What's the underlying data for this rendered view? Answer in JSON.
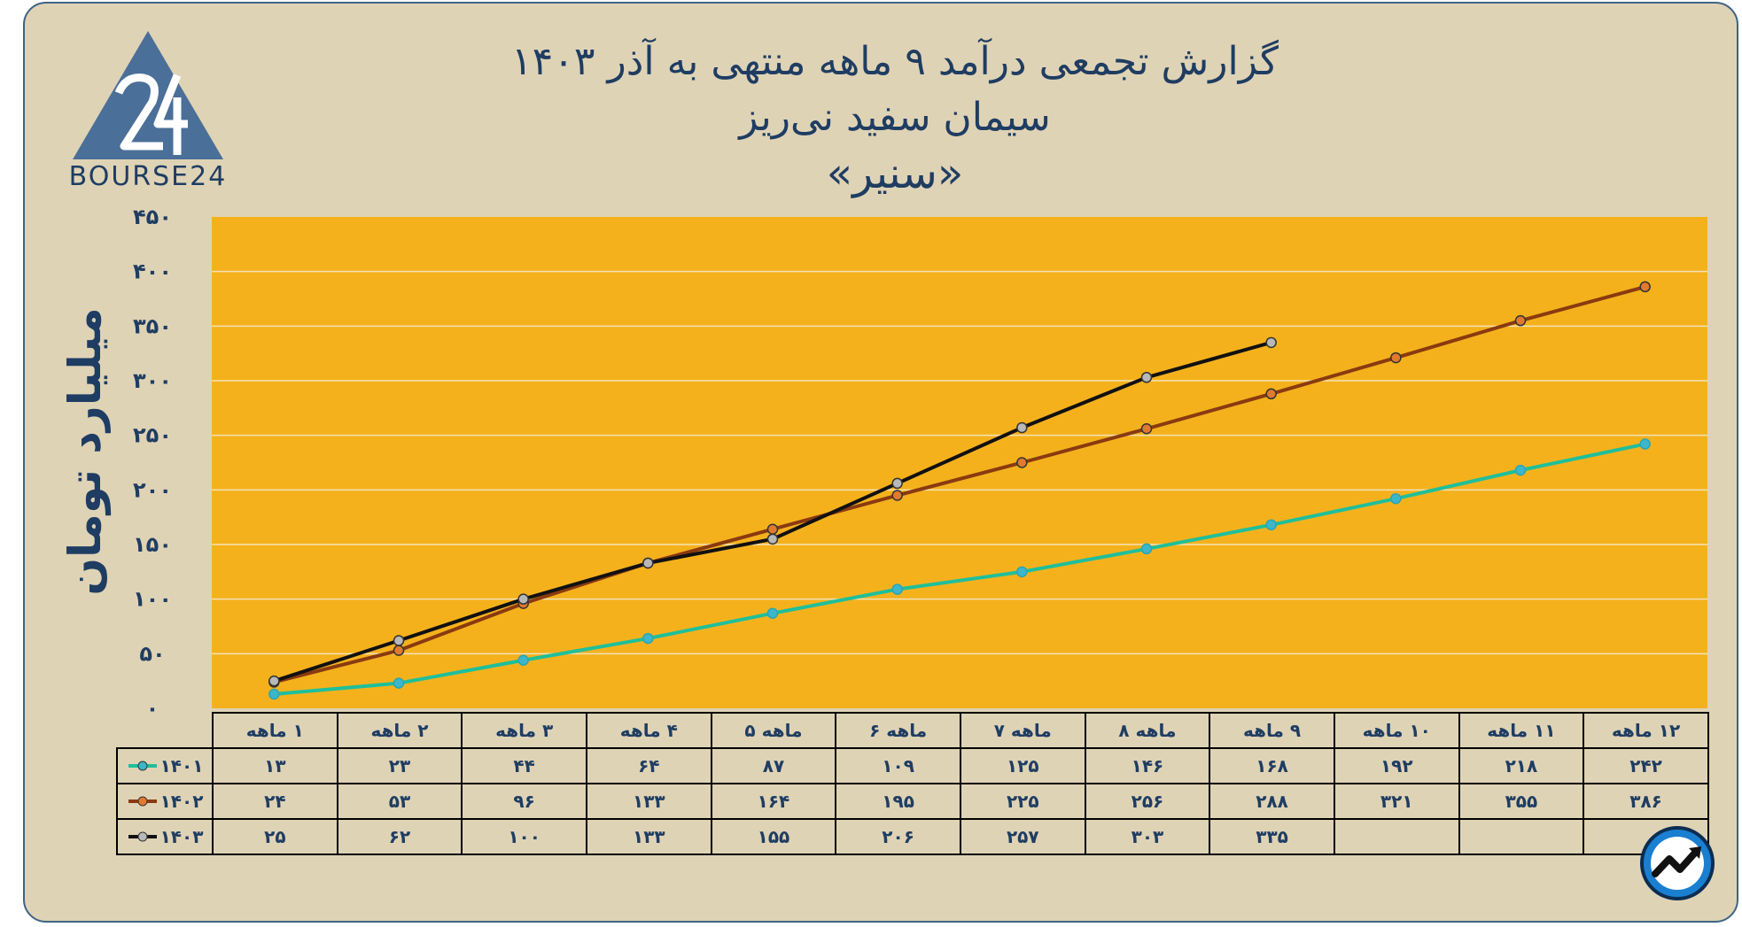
{
  "header": {
    "title_line1": "گزارش تجمعی درآمد ۹ ماهه منتهی به آذر ۱۴۰۳",
    "title_line2": "سیمان سفید نی‌ریز",
    "title_line3": "«سنیر»"
  },
  "logo": {
    "text": "BOURSE24",
    "icon": "bourse24-logo"
  },
  "corner_icon": "trend-arrow-icon",
  "colors": {
    "background": "#dfd3b6",
    "plot_area": "#f5b11c",
    "border": "#3f6384",
    "title": "#1f3d62",
    "series_1401": "#1fbf9a",
    "series_1402": "#8a3a10",
    "series_1403": "#111111"
  },
  "chart_data": {
    "type": "line",
    "ylabel": "میلیارد تومان",
    "xlabel": "",
    "ylim": [
      0,
      450
    ],
    "yticks": [
      "۰",
      "۵۰",
      "۱۰۰",
      "۱۵۰",
      "۲۰۰",
      "۲۵۰",
      "۳۰۰",
      "۳۵۰",
      "۴۰۰",
      "۴۵۰"
    ],
    "ytick_values": [
      0,
      50,
      100,
      150,
      200,
      250,
      300,
      350,
      400,
      450
    ],
    "grid": true,
    "legend": "table-left",
    "categories": [
      "۱ ماهه",
      "۲ ماهه",
      "۳ ماهه",
      "۴ ماهه",
      "ماهه ۵",
      "ماهه ۶",
      "ماهه ۷",
      "ماهه ۸",
      "۹ ماهه",
      "۱۰ ماهه",
      "۱۱ ماهه",
      "۱۲ ماهه"
    ],
    "series": [
      {
        "name": "۱۴۰۱",
        "values": [
          13,
          23,
          44,
          64,
          87,
          109,
          125,
          146,
          168,
          192,
          218,
          242
        ],
        "labels": [
          "۱۳",
          "۲۳",
          "۴۴",
          "۶۴",
          "۸۷",
          "۱۰۹",
          "۱۲۵",
          "۱۴۶",
          "۱۶۸",
          "۱۹۲",
          "۲۱۸",
          "۲۴۲"
        ]
      },
      {
        "name": "۱۴۰۲",
        "values": [
          24,
          53,
          96,
          133,
          164,
          195,
          225,
          256,
          288,
          321,
          355,
          386
        ],
        "labels": [
          "۲۴",
          "۵۳",
          "۹۶",
          "۱۳۳",
          "۱۶۴",
          "۱۹۵",
          "۲۲۵",
          "۲۵۶",
          "۲۸۸",
          "۳۲۱",
          "۳۵۵",
          "۳۸۶"
        ]
      },
      {
        "name": "۱۴۰۳",
        "values": [
          25,
          62,
          100,
          133,
          155,
          206,
          257,
          303,
          335,
          null,
          null,
          null
        ],
        "labels": [
          "۲۵",
          "۶۲",
          "۱۰۰",
          "۱۳۳",
          "۱۵۵",
          "۲۰۶",
          "۲۵۷",
          "۳۰۳",
          "۳۳۵",
          "",
          "",
          ""
        ]
      }
    ]
  }
}
